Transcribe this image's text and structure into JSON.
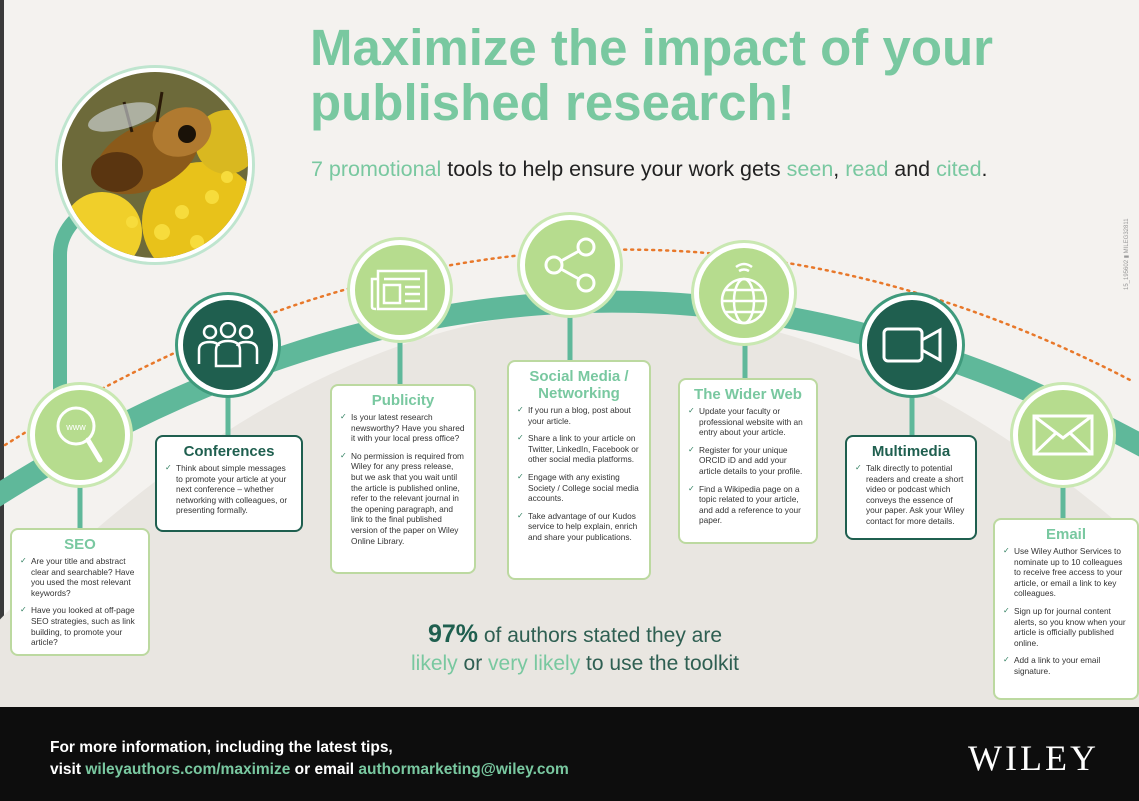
{
  "header": {
    "title_line1": "Maximize the impact of your",
    "title_line2": "published research!",
    "subtitle": {
      "p1": "7 promotional",
      "p2": " tools to help ensure your work gets ",
      "p3": "seen",
      "p4": ", ",
      "p5": "read",
      "p6": " and ",
      "p7": "cited",
      "p8": "."
    }
  },
  "colors": {
    "green": "#79c8a0",
    "dark_green": "#1f5f4f",
    "light_green": "#b6dc8e",
    "dots": "#e8782a"
  },
  "tools": [
    {
      "title": "SEO",
      "icon": "magnifier-www-icon",
      "icon_text": "www",
      "points": [
        "Are your title and abstract clear and searchable? Have you used the most relevant keywords?",
        "Have you looked at off-page SEO strategies, such as link building, to promote your article?"
      ]
    },
    {
      "title": "Conferences",
      "icon": "people-group-icon",
      "points": [
        "Think about simple messages to promote your article at your next conference – whether networking with colleagues, or presenting formally."
      ]
    },
    {
      "title": "Publicity",
      "icon": "newspaper-icon",
      "points": [
        "Is your latest research newsworthy? Have you shared it with your local press office?",
        "No permission is required from Wiley for any press release, but we ask that you wait until the article is published online, refer to the relevant journal in the opening paragraph, and link to the final published version of the paper on Wiley Online Library."
      ]
    },
    {
      "title": "Social Media / Networking",
      "icon": "share-network-icon",
      "points": [
        "If you run a blog, post about your article.",
        "Share a link to your article on Twitter, LinkedIn, Facebook or other social media platforms.",
        "Engage with any existing Society / College social media accounts.",
        "Take advantage of our Kudos service to help explain, enrich and share your publications."
      ]
    },
    {
      "title": "The Wider Web",
      "icon": "globe-wifi-icon",
      "points": [
        "Update your faculty or professional website with an entry about your article.",
        "Register for your unique ORCID iD and add your article details to your profile.",
        "Find a Wikipedia page on a topic related to your article, and add a reference to your paper."
      ]
    },
    {
      "title": "Multimedia",
      "icon": "video-camera-icon",
      "points": [
        "Talk directly to potential readers and create a short video or podcast which conveys the essence of your paper. Ask your Wiley contact for more details."
      ]
    },
    {
      "title": "Email",
      "icon": "envelope-icon",
      "points": [
        "Use Wiley Author Services to nominate up to 10 colleagues to receive free access to your article, or email a link to key colleagues.",
        "Sign up for journal content alerts, so you know when your article is officially published online.",
        "Add a link to your email signature."
      ]
    }
  ],
  "stat": {
    "number": "97%",
    "line1_rest": " of authors stated they are",
    "likely": "likely",
    "or": " or ",
    "very_likely": "very likely",
    "line2_rest": " to use the toolkit"
  },
  "footer": {
    "line1": "For more information, including the latest tips,",
    "visit": "visit ",
    "url": "wileyauthors.com/maximize",
    "or_email": " or email ",
    "email": "authormarketing@wiley.com",
    "logo": "WILEY"
  },
  "side_code": "15_195602 ▮ MILEG32811"
}
